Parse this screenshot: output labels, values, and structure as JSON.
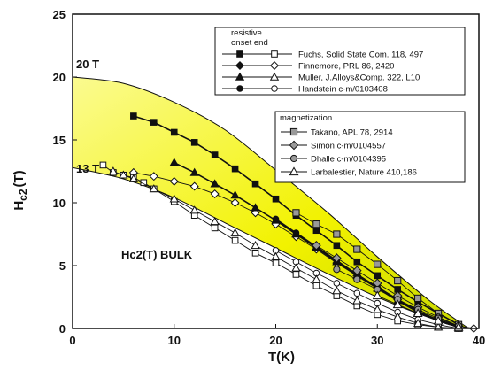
{
  "chart_data": {
    "type": "scatter",
    "ylabel_main": "H",
    "ylabel_sub": "c2",
    "ylabel_unit": "(T)",
    "xlabel": "T(K)",
    "xlim": [
      0,
      40
    ],
    "ylim": [
      0,
      25
    ],
    "x_ticks": [
      "0",
      "10",
      "20",
      "30",
      "40"
    ],
    "y_ticks": [
      "0",
      "5",
      "10",
      "15",
      "20",
      "25"
    ],
    "band": {
      "color": "#f2f200",
      "upper": {
        "label": "20 T",
        "x": [
          0,
          5,
          10,
          15,
          20,
          25,
          30,
          35,
          39
        ],
        "y": [
          20,
          19.5,
          18,
          15.8,
          12.6,
          9.3,
          5.7,
          2.3,
          0
        ]
      },
      "lower": {
        "label": "13 T",
        "x": [
          0,
          5,
          10,
          15,
          20,
          25,
          30,
          35,
          39
        ],
        "y": [
          12.8,
          11.9,
          10.4,
          8.4,
          6.4,
          4.4,
          2.5,
          0.9,
          0
        ]
      }
    },
    "annotation": "Hc2(T)  BULK",
    "legend": {
      "group1_title": "resistive",
      "group1_sub": "onset   end",
      "group2_title": "magnetization"
    },
    "series": [
      {
        "name": "Fuchs, Solid State Com. 118, 497",
        "marker": "square",
        "fill": "#111111",
        "style": "onset",
        "x": [
          6,
          8,
          10,
          12,
          14,
          16,
          18,
          20,
          22,
          24,
          26,
          28,
          30,
          32,
          34,
          36,
          38
        ],
        "y": [
          16.9,
          16.4,
          15.6,
          14.8,
          13.8,
          12.7,
          11.5,
          10.3,
          9.0,
          7.8,
          6.6,
          5.3,
          4.2,
          3.1,
          2.1,
          1.2,
          0.3
        ]
      },
      {
        "name": "Finnemore, PRL 86, 2420",
        "marker": "diamond",
        "fill": "#ffffff",
        "style": "end",
        "x": [
          6,
          8,
          10,
          12,
          14,
          16,
          18,
          20,
          22,
          24,
          26,
          28,
          30,
          32,
          34,
          36,
          38,
          39.5
        ],
        "y": [
          12.4,
          12.1,
          11.7,
          11.3,
          10.7,
          10.0,
          9.2,
          8.3,
          7.3,
          6.3,
          5.2,
          4.2,
          3.2,
          2.3,
          1.4,
          0.7,
          0.2,
          0
        ]
      },
      {
        "name": "Muller, J.Alloys&Comp. 322, L10",
        "marker": "triangle",
        "fill": "#111111",
        "style": "onset",
        "x": [
          10,
          12,
          14,
          16,
          18,
          20,
          22,
          24,
          26,
          28,
          30,
          32,
          34,
          36,
          38
        ],
        "y": [
          13.2,
          12.4,
          11.5,
          10.6,
          9.6,
          8.6,
          7.5,
          6.4,
          5.3,
          4.2,
          3.2,
          2.2,
          1.3,
          0.6,
          0.1
        ]
      },
      {
        "name": "Handstein c-m/0103408",
        "marker": "circle",
        "fill": "#111111",
        "style": "onset",
        "x": [
          20,
          22,
          24,
          26,
          28,
          30,
          32,
          34,
          36,
          38
        ],
        "y": [
          8.7,
          7.6,
          6.5,
          5.4,
          4.3,
          3.3,
          2.3,
          1.4,
          0.6,
          0.1
        ]
      },
      {
        "name": "Fuchs end",
        "marker": "square",
        "fill": "#ffffff",
        "style": "end",
        "x": [
          3,
          4,
          5,
          6,
          7,
          8,
          10,
          12,
          14,
          16,
          18,
          20,
          22,
          24,
          26,
          28,
          30,
          32,
          34,
          36,
          38
        ],
        "y": [
          13.0,
          12.4,
          12.2,
          12.0,
          11.6,
          11.1,
          10.1,
          9.0,
          8.0,
          7.0,
          6.0,
          5.2,
          4.3,
          3.4,
          2.6,
          1.8,
          1.1,
          0.6,
          0.3,
          0.1,
          0
        ]
      },
      {
        "name": "Handstein end",
        "marker": "circle",
        "fill": "#ffffff",
        "style": "end",
        "x": [
          20,
          22,
          24,
          26,
          28,
          30,
          32,
          34,
          36,
          38
        ],
        "y": [
          6.2,
          5.3,
          4.4,
          3.6,
          2.8,
          2.0,
          1.3,
          0.7,
          0.3,
          0
        ]
      },
      {
        "name": "Muller end",
        "marker": "triangle",
        "fill": "#ffffff",
        "style": "end",
        "x": [
          4,
          5,
          6,
          8,
          10,
          12,
          14,
          16,
          18,
          20,
          22,
          24,
          26,
          28,
          30,
          32,
          34,
          36,
          38
        ],
        "y": [
          12.5,
          12.2,
          11.9,
          11.1,
          10.3,
          9.4,
          8.5,
          7.6,
          6.6,
          5.7,
          4.8,
          3.9,
          3.0,
          2.2,
          1.5,
          0.9,
          0.4,
          0.1,
          0
        ]
      },
      {
        "name": "Takano, APL 78, 2914",
        "marker": "square",
        "fill": "#999999",
        "style": "mag",
        "x": [
          22,
          24,
          26,
          28,
          30,
          32,
          34,
          36,
          38
        ],
        "y": [
          9.2,
          8.3,
          7.5,
          6.3,
          5.1,
          3.8,
          2.4,
          1.2,
          0.3
        ]
      },
      {
        "name": "Simon c-m/0104557",
        "marker": "diamond",
        "fill": "#999999",
        "style": "mag",
        "x": [
          24,
          26,
          28,
          30,
          32,
          34,
          36,
          38
        ],
        "y": [
          6.6,
          5.6,
          4.6,
          3.6,
          2.6,
          1.7,
          0.9,
          0.2
        ]
      },
      {
        "name": "Dhalle c-m/0104395",
        "marker": "circle",
        "fill": "#999999",
        "style": "mag",
        "x": [
          26,
          28,
          30,
          32,
          34,
          36,
          38
        ],
        "y": [
          4.7,
          3.9,
          3.1,
          2.3,
          1.5,
          0.8,
          0.2
        ]
      },
      {
        "name": "Larbalestier, Nature 410,186",
        "marker": "triangle",
        "fill": "#ffffff",
        "style": "mag",
        "x": [
          30,
          32,
          34,
          36,
          38
        ],
        "y": [
          2.6,
          1.9,
          1.2,
          0.6,
          0.1
        ]
      }
    ]
  }
}
